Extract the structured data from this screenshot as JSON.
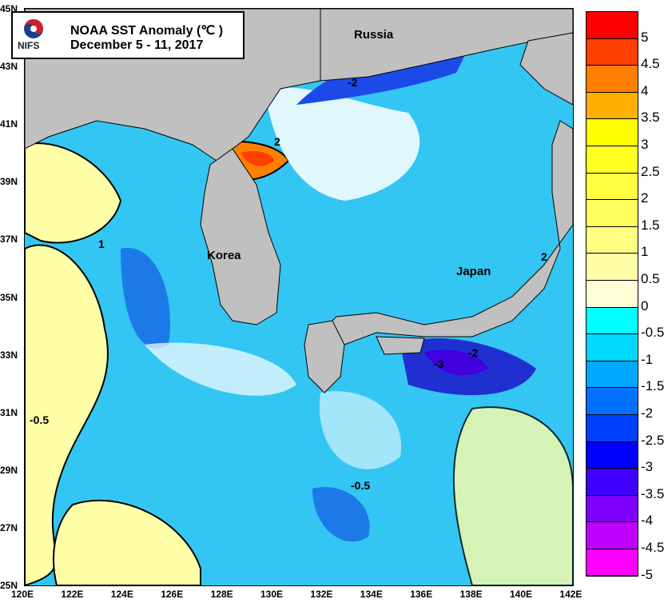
{
  "legend": {
    "title": "NOAA SST Anomaly (℃ )",
    "date": "December 5 - 11, 2017",
    "logo_text": "NIFS"
  },
  "places": [
    {
      "name": "Russia"
    },
    {
      "name": "Korea"
    },
    {
      "name": "Japan"
    }
  ],
  "lat_labels": [
    "45N",
    "43N",
    "41N",
    "39N",
    "37N",
    "35N",
    "33N",
    "31N",
    "29N",
    "27N",
    "25N"
  ],
  "lon_labels": [
    "120E",
    "122E",
    "124E",
    "126E",
    "128E",
    "130E",
    "132E",
    "134E",
    "136E",
    "138E",
    "140E",
    "142E"
  ],
  "contour_labels": [
    "-2",
    "2",
    "-3",
    "-2",
    "-0.5",
    "1",
    "-0.5",
    "2"
  ],
  "colorbar": {
    "labels": [
      "5",
      "4.5",
      "4",
      "3.5",
      "3",
      "2.5",
      "2",
      "1.5",
      "1",
      "0.5",
      "0",
      "-0.5",
      "-1",
      "-1.5",
      "-2",
      "-2.5",
      "-3",
      "-3.5",
      "-4",
      "-4.5",
      "-5"
    ],
    "colors": [
      "#ff0000",
      "#ff4000",
      "#ff8000",
      "#ffb000",
      "#ffff00",
      "#ffff20",
      "#ffff40",
      "#ffff60",
      "#ffff80",
      "#ffffa8",
      "#ffffd8",
      "#00ffff",
      "#00d8ff",
      "#00a8ff",
      "#0070ff",
      "#0040ff",
      "#0000ff",
      "#4000ff",
      "#8000ff",
      "#c000ff",
      "#ff00ff"
    ]
  },
  "colors": {
    "land": "#c0c0c0",
    "ocean_default": "#33c6f2"
  }
}
